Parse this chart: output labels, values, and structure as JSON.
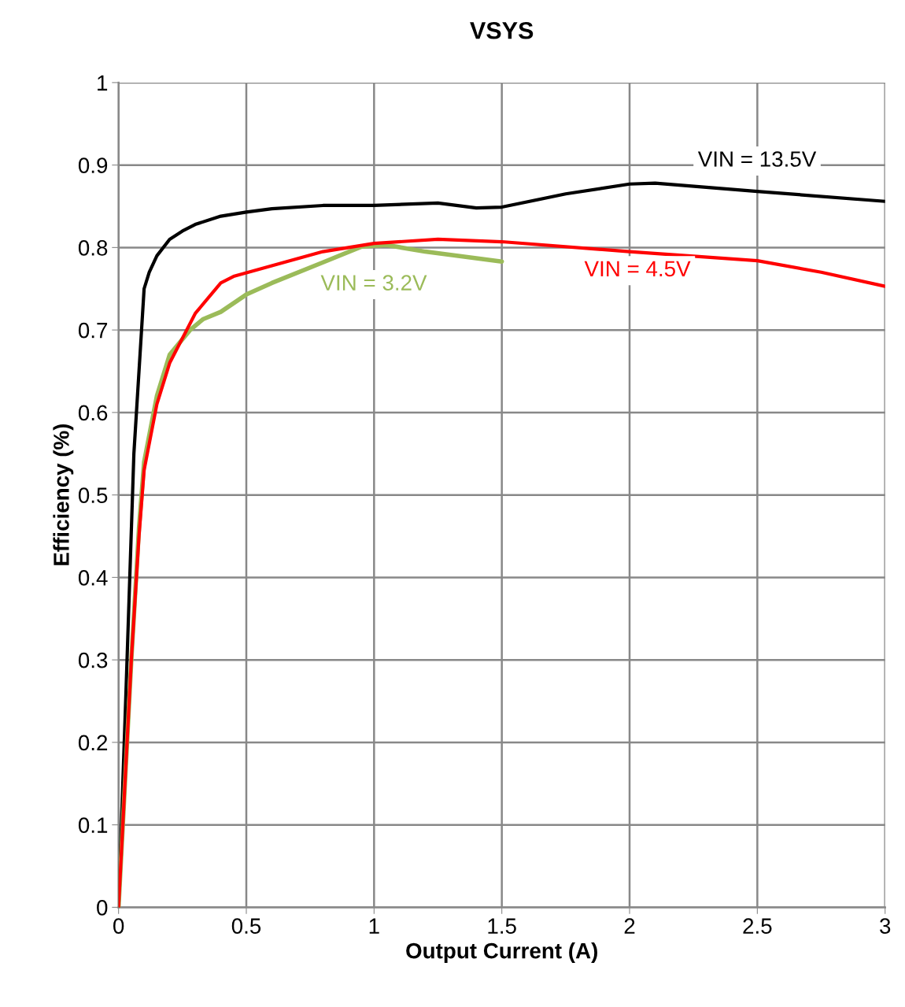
{
  "chart_data": {
    "type": "line",
    "title": "VSYS",
    "xlabel": "Output Current (A)",
    "ylabel": "Efficiency (%)",
    "xlim": [
      0,
      3
    ],
    "ylim": [
      0,
      1
    ],
    "xticks": [
      0,
      0.5,
      1,
      1.5,
      2,
      2.5,
      3
    ],
    "yticks": [
      0,
      0.1,
      0.2,
      0.3,
      0.4,
      0.5,
      0.6,
      0.7,
      0.8,
      0.9,
      1
    ],
    "grid": true,
    "marker": "none",
    "line_style": "solid",
    "series": [
      {
        "name": "VIN = 13.5V",
        "color": "#000000",
        "x": [
          0,
          0.03,
          0.06,
          0.09,
          0.1,
          0.12,
          0.15,
          0.2,
          0.25,
          0.3,
          0.4,
          0.5,
          0.6,
          0.8,
          1.0,
          1.25,
          1.4,
          1.5,
          1.75,
          2.0,
          2.1,
          2.5,
          3.0
        ],
        "values": [
          0,
          0.27,
          0.55,
          0.7,
          0.75,
          0.77,
          0.79,
          0.81,
          0.82,
          0.828,
          0.838,
          0.843,
          0.847,
          0.851,
          0.851,
          0.854,
          0.848,
          0.849,
          0.865,
          0.877,
          0.878,
          0.868,
          0.856
        ]
      },
      {
        "name": "VIN = 4.5V",
        "color": "#ff0000",
        "x": [
          0,
          0.05,
          0.08,
          0.1,
          0.15,
          0.2,
          0.3,
          0.4,
          0.45,
          0.6,
          0.8,
          1.0,
          1.25,
          1.5,
          2.0,
          2.5,
          2.75,
          3.0
        ],
        "values": [
          0,
          0.3,
          0.45,
          0.53,
          0.61,
          0.66,
          0.72,
          0.757,
          0.765,
          0.778,
          0.795,
          0.805,
          0.81,
          0.807,
          0.795,
          0.784,
          0.77,
          0.753
        ]
      },
      {
        "name": "VIN = 3.2V",
        "color": "#9bbb59",
        "x": [
          0,
          0.05,
          0.08,
          0.1,
          0.15,
          0.2,
          0.28,
          0.33,
          0.4,
          0.5,
          0.6,
          0.8,
          0.95,
          1.05,
          1.2,
          1.5
        ],
        "values": [
          0,
          0.3,
          0.46,
          0.54,
          0.62,
          0.67,
          0.7,
          0.713,
          0.722,
          0.743,
          0.757,
          0.782,
          0.801,
          0.803,
          0.795,
          0.783
        ]
      }
    ]
  }
}
